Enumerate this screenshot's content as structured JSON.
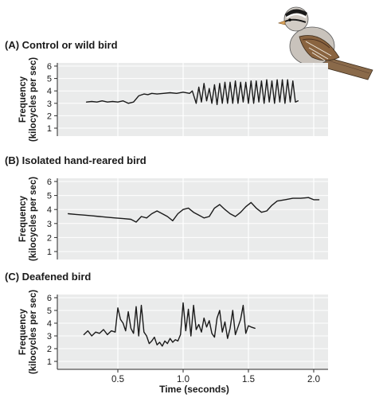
{
  "chart_data": {
    "type": "line",
    "x_axis": {
      "label": "Time (seconds)",
      "ticks": [
        "0.5",
        "1.0",
        "1.5",
        "2.0"
      ],
      "range": [
        0.0,
        2.1
      ]
    },
    "y_axis": {
      "label_line1": "Frequency",
      "label_line2": "(kilocycles per sec)",
      "ticks": [
        "1",
        "2",
        "3",
        "4",
        "5",
        "6"
      ],
      "range": [
        0,
        6
      ]
    },
    "panels": [
      {
        "title": "(A) Control or wild bird",
        "series": [
          {
            "x": [
              0.26,
              0.3,
              0.34,
              0.38,
              0.42,
              0.46,
              0.5,
              0.54,
              0.58,
              0.62,
              0.66,
              0.7,
              0.73,
              0.76,
              0.8,
              0.85,
              0.9,
              0.95,
              1.0,
              1.05,
              1.07,
              1.1,
              1.12,
              1.14,
              1.16,
              1.18,
              1.2,
              1.22,
              1.24,
              1.26,
              1.28,
              1.3,
              1.32,
              1.34,
              1.36,
              1.38,
              1.4,
              1.42,
              1.44,
              1.46,
              1.48,
              1.5,
              1.52,
              1.54,
              1.56,
              1.58,
              1.6,
              1.62,
              1.64,
              1.66,
              1.68,
              1.7,
              1.72,
              1.74,
              1.76,
              1.78,
              1.8,
              1.82,
              1.84,
              1.86,
              1.88
            ],
            "y": [
              3.1,
              3.15,
              3.1,
              3.2,
              3.1,
              3.15,
              3.1,
              3.2,
              3.0,
              3.1,
              3.6,
              3.75,
              3.7,
              3.8,
              3.75,
              3.8,
              3.85,
              3.8,
              3.9,
              3.8,
              4.0,
              3.0,
              4.3,
              3.1,
              4.6,
              3.2,
              4.2,
              3.0,
              4.5,
              2.9,
              4.6,
              3.0,
              4.7,
              3.0,
              4.7,
              3.0,
              4.8,
              3.0,
              4.7,
              3.1,
              4.7,
              3.0,
              4.8,
              3.0,
              4.8,
              3.1,
              4.8,
              3.0,
              4.9,
              3.1,
              4.8,
              3.0,
              4.9,
              3.1,
              4.9,
              3.0,
              4.9,
              3.1,
              4.8,
              3.1,
              3.2
            ]
          }
        ]
      },
      {
        "title": "(B)  Isolated hand-reared bird",
        "series": [
          {
            "x": [
              0.12,
              0.18,
              0.24,
              0.3,
              0.36,
              0.42,
              0.48,
              0.54,
              0.6,
              0.64,
              0.68,
              0.72,
              0.76,
              0.8,
              0.84,
              0.88,
              0.92,
              0.96,
              1.0,
              1.04,
              1.08,
              1.12,
              1.16,
              1.2,
              1.24,
              1.28,
              1.32,
              1.36,
              1.4,
              1.44,
              1.48,
              1.52,
              1.56,
              1.6,
              1.64,
              1.68,
              1.72,
              1.78,
              1.84,
              1.9,
              1.96,
              2.0,
              2.04
            ],
            "y": [
              3.7,
              3.65,
              3.6,
              3.55,
              3.5,
              3.45,
              3.4,
              3.35,
              3.3,
              3.1,
              3.5,
              3.4,
              3.7,
              3.9,
              3.7,
              3.5,
              3.2,
              3.7,
              4.0,
              4.1,
              3.8,
              3.6,
              3.4,
              3.5,
              4.1,
              4.35,
              4.0,
              3.7,
              3.5,
              3.8,
              4.2,
              4.5,
              4.1,
              3.8,
              3.9,
              4.3,
              4.6,
              4.7,
              4.8,
              4.8,
              4.85,
              4.7,
              4.7
            ]
          }
        ]
      },
      {
        "title": "(C) Deafened bird",
        "series": [
          {
            "x": [
              0.24,
              0.27,
              0.3,
              0.33,
              0.36,
              0.39,
              0.42,
              0.45,
              0.48,
              0.5,
              0.52,
              0.54,
              0.56,
              0.58,
              0.6,
              0.62,
              0.64,
              0.66,
              0.68,
              0.7,
              0.72,
              0.74,
              0.76,
              0.78,
              0.8,
              0.82,
              0.84,
              0.86,
              0.88,
              0.9,
              0.92,
              0.94,
              0.96,
              0.98,
              1.0,
              1.02,
              1.04,
              1.06,
              1.08,
              1.1,
              1.12,
              1.14,
              1.16,
              1.18,
              1.2,
              1.22,
              1.24,
              1.26,
              1.28,
              1.3,
              1.32,
              1.34,
              1.36,
              1.38,
              1.4,
              1.42,
              1.44,
              1.46,
              1.48,
              1.5,
              1.52,
              1.55
            ],
            "y": [
              3.1,
              3.4,
              3.0,
              3.3,
              3.2,
              3.5,
              3.1,
              3.4,
              3.3,
              5.2,
              4.3,
              4.0,
              3.4,
              4.9,
              3.6,
              3.2,
              5.3,
              3.0,
              5.4,
              3.3,
              3.0,
              2.4,
              2.6,
              2.9,
              2.3,
              2.5,
              2.2,
              2.6,
              2.4,
              2.8,
              2.5,
              2.7,
              2.6,
              3.1,
              5.6,
              3.4,
              5.1,
              3.0,
              5.4,
              3.5,
              3.9,
              3.3,
              4.4,
              3.7,
              4.2,
              3.2,
              2.9,
              4.4,
              5.0,
              3.3,
              4.1,
              2.8,
              3.6,
              5.0,
              3.1,
              3.7,
              4.3,
              5.4,
              3.2,
              3.8,
              3.7,
              3.6
            ]
          }
        ]
      }
    ]
  }
}
